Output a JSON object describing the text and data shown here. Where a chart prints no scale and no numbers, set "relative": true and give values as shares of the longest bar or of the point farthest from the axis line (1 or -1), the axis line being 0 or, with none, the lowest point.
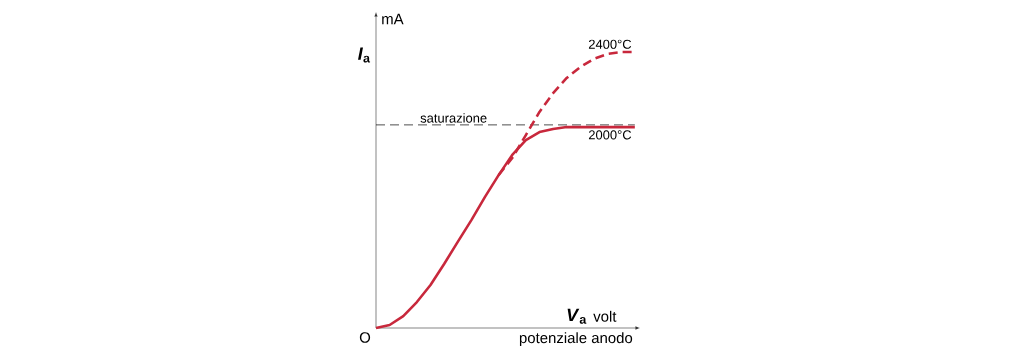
{
  "chart_data": {
    "type": "line",
    "relative": true,
    "xlabel": "*V*$_{a}$",
    "ylabel": "*I*$_{a}$",
    "categories": [
      null,
      null,
      null,
      null,
      null,
      null,
      null,
      null,
      null,
      null,
      null,
      null,
      null,
      null,
      null,
      null,
      null,
      null,
      null,
      null
    ],
    "series": [
      {
        "name": "2000°C",
        "color": "#c8283c",
        "line_style": "solid",
        "values": [
          0,
          0.011,
          0.043,
          0.094,
          0.156,
          0.232,
          0.312,
          0.391,
          0.475,
          0.554,
          0.627,
          0.681,
          0.71,
          0.721,
          0.728,
          0.728,
          0.728,
          0.728,
          0.728,
          0.728
        ]
      },
      {
        "name": "2400°C",
        "color": "#c8283c",
        "line_style": "dashed",
        "values": [
          null,
          null,
          null,
          null,
          null,
          null,
          null,
          null,
          null,
          0.554,
          0.616,
          0.699,
          0.783,
          0.851,
          0.906,
          0.946,
          0.975,
          0.993,
          1,
          1
        ]
      }
    ],
    "ref_lines": [
      {
        "axis": "y",
        "value": 0.736,
        "label": "saturazione",
        "color": "#000000",
        "line_style": "dashed"
      }
    ],
    "annotations": [
      "mA",
      "volt",
      "O",
      "potenziale anodo"
    ],
    "marker": "none"
  }
}
